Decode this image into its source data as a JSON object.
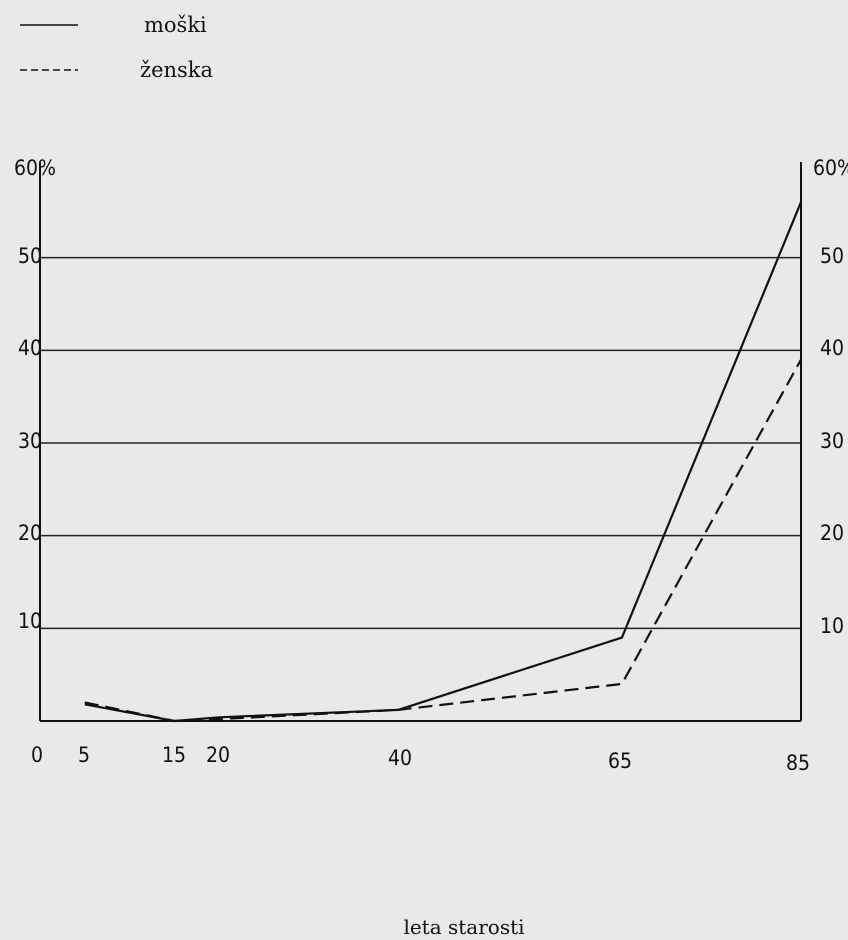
{
  "chart_data": {
    "type": "line",
    "xlabel": "leta starosti",
    "x_ticks": [
      "0",
      "5",
      "15",
      "20",
      "40",
      "65",
      "85"
    ],
    "y_ticks_left": [
      "60%",
      "50",
      "40",
      "30",
      "20",
      "10"
    ],
    "y_ticks_right": [
      "60%",
      "50",
      "40",
      "30",
      "20",
      "10"
    ],
    "xlim": [
      0,
      85
    ],
    "ylim": [
      0,
      60
    ],
    "grid": true,
    "legend_position": "top-left",
    "series": [
      {
        "name": "moški",
        "style": "solid",
        "color": "#111111",
        "points": [
          [
            5,
            1.8
          ],
          [
            15,
            0
          ],
          [
            20,
            0.4
          ],
          [
            40,
            1.2
          ],
          [
            65,
            9
          ],
          [
            85,
            56
          ]
        ]
      },
      {
        "name": "ženska",
        "style": "dashed",
        "color": "#111111",
        "points": [
          [
            5,
            2
          ],
          [
            15,
            0
          ],
          [
            20,
            0.2
          ],
          [
            40,
            1.2
          ],
          [
            65,
            4
          ],
          [
            85,
            39
          ]
        ]
      }
    ]
  }
}
